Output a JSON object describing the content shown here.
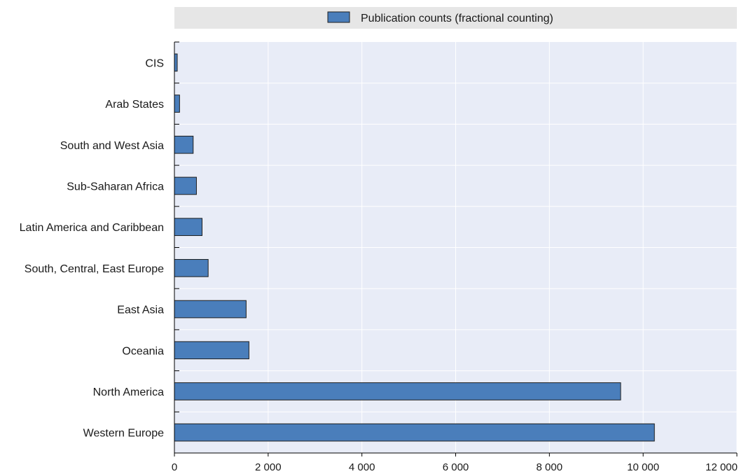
{
  "chart_data": {
    "type": "bar",
    "orientation": "horizontal",
    "categories": [
      "CIS",
      "Arab States",
      "South and West Asia",
      "Sub-Saharan Africa",
      "Latin America and Caribbean",
      "South, Central, East Europe",
      "East Asia",
      "Oceania",
      "North America",
      "Western Europe"
    ],
    "series": [
      {
        "name": "Publication counts (fractional counting)",
        "values": [
          60,
          110,
          400,
          470,
          590,
          720,
          1530,
          1590,
          9520,
          10240
        ]
      }
    ],
    "xlim": [
      0,
      12000
    ],
    "xticks": [
      0,
      2000,
      4000,
      6000,
      8000,
      10000,
      12000
    ],
    "xtick_labels": [
      "0",
      "2 000",
      "4 000",
      "6 000",
      "8 000",
      "10 000",
      "12 000"
    ],
    "grid": "vertical",
    "legend_position": "top",
    "colors": {
      "bar_fill": "#4a7ebb",
      "bar_stroke": "#1f1f1f",
      "plot_background": "#e8ecf7",
      "legend_background": "#e6e6e6",
      "grid": "#ffffff",
      "axis": "#000000"
    }
  }
}
